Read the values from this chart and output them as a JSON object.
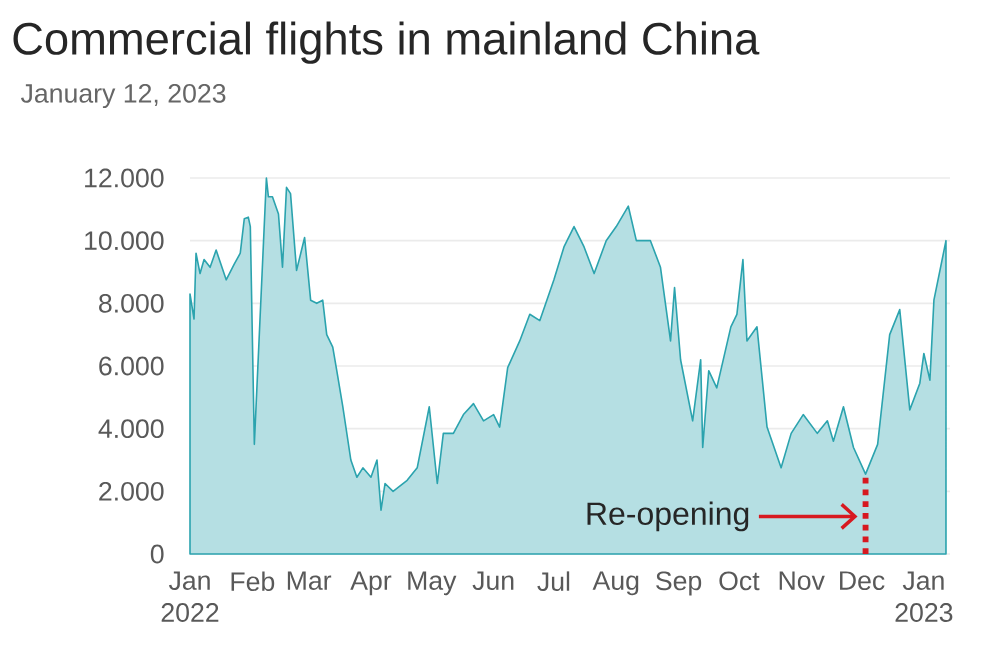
{
  "chart_data": {
    "type": "area",
    "title": "Commercial flights in mainland China",
    "subtitle": "January 12, 2023",
    "xlim": [
      "2022-01-01",
      "2023-01-14"
    ],
    "xticks": [
      {
        "value": "2022-01-01",
        "label": "Jan 2022"
      },
      {
        "value": "2022-02-01",
        "label": "Feb"
      },
      {
        "value": "2022-03-01",
        "label": "Mar"
      },
      {
        "value": "2022-04-01",
        "label": "Apr"
      },
      {
        "value": "2022-05-01",
        "label": "May"
      },
      {
        "value": "2022-06-01",
        "label": "Jun"
      },
      {
        "value": "2022-07-01",
        "label": "Jul"
      },
      {
        "value": "2022-08-01",
        "label": "Aug"
      },
      {
        "value": "2022-09-01",
        "label": "Sep"
      },
      {
        "value": "2022-10-01",
        "label": "Oct"
      },
      {
        "value": "2022-11-01",
        "label": "Nov"
      },
      {
        "value": "2022-12-01",
        "label": "Dec"
      },
      {
        "value": "2023-01-01",
        "label": "Jan 2023"
      }
    ],
    "ylim": [
      0,
      12000
    ],
    "yticks": [
      0,
      {
        "value": 2000,
        "label": "2.000"
      },
      {
        "value": 4000,
        "label": "4.000"
      },
      {
        "value": 6000,
        "label": "6.000"
      },
      {
        "value": 8000,
        "label": "8.000"
      },
      {
        "value": 10000,
        "label": "10.000"
      },
      {
        "value": 12000,
        "label": "12.000"
      }
    ],
    "grid": "y",
    "marker": "none",
    "series": [
      {
        "color": "#2ba3ae",
        "x": [
          "2022-01-01",
          "2022-01-03",
          "2022-01-04",
          "2022-01-06",
          "2022-01-08",
          "2022-01-11",
          "2022-01-14",
          "2022-01-19",
          "2022-01-23",
          "2022-01-26",
          "2022-01-28",
          "2022-01-30",
          "2022-01-31",
          "2022-02-02",
          "2022-02-08",
          "2022-02-09",
          "2022-02-11",
          "2022-02-14",
          "2022-02-16",
          "2022-02-18",
          "2022-02-20",
          "2022-02-23",
          "2022-02-27",
          "2022-03-02",
          "2022-03-05",
          "2022-03-08",
          "2022-03-10",
          "2022-03-13",
          "2022-03-15",
          "2022-03-18",
          "2022-03-22",
          "2022-03-25",
          "2022-03-28",
          "2022-04-01",
          "2022-04-04",
          "2022-04-06",
          "2022-04-08",
          "2022-04-12",
          "2022-04-19",
          "2022-04-24",
          "2022-04-30",
          "2022-05-04",
          "2022-05-07",
          "2022-05-12",
          "2022-05-17",
          "2022-05-22",
          "2022-05-27",
          "2022-06-01",
          "2022-06-04",
          "2022-06-08",
          "2022-06-14",
          "2022-06-19",
          "2022-06-24",
          "2022-07-01",
          "2022-07-06",
          "2022-07-11",
          "2022-07-16",
          "2022-07-21",
          "2022-07-27",
          "2022-08-01",
          "2022-08-07",
          "2022-08-11",
          "2022-08-18",
          "2022-08-23",
          "2022-08-28",
          "2022-08-30",
          "2022-09-02",
          "2022-09-08",
          "2022-09-12",
          "2022-09-13",
          "2022-09-16",
          "2022-09-20",
          "2022-09-27",
          "2022-09-30",
          "2022-10-03",
          "2022-10-05",
          "2022-10-10",
          "2022-10-15",
          "2022-10-22",
          "2022-10-27",
          "2022-11-02",
          "2022-11-09",
          "2022-11-14",
          "2022-11-17",
          "2022-11-22",
          "2022-11-27",
          "2022-12-03",
          "2022-12-09",
          "2022-12-15",
          "2022-12-20",
          "2022-12-25",
          "2022-12-30",
          "2023-01-01",
          "2023-01-04",
          "2023-01-06",
          "2023-01-12"
        ],
        "values": [
          8300,
          7500,
          9600,
          8950,
          9400,
          9150,
          9700,
          8750,
          9250,
          9600,
          10700,
          10750,
          10450,
          3500,
          12000,
          11400,
          11400,
          10850,
          9150,
          11700,
          11500,
          9050,
          10100,
          8100,
          8000,
          8100,
          7000,
          6600,
          5850,
          4700,
          3000,
          2450,
          2750,
          2450,
          3000,
          1400,
          2250,
          2000,
          2350,
          2750,
          4700,
          2250,
          3850,
          3850,
          4450,
          4800,
          4250,
          4450,
          4050,
          5950,
          6800,
          7650,
          7450,
          8750,
          9800,
          10450,
          9800,
          8950,
          10000,
          10450,
          11100,
          10000,
          10000,
          9150,
          6800,
          8500,
          6200,
          4250,
          6200,
          3400,
          5850,
          5300,
          7250,
          7650,
          9400,
          6800,
          7250,
          4050,
          2750,
          3850,
          4450,
          3850,
          4250,
          3600,
          4700,
          3400,
          2550,
          3500,
          7000,
          7800,
          4600,
          5450,
          6400,
          5550,
          8100,
          10000
        ]
      }
    ],
    "ref_lines": [
      {
        "axis": "x",
        "value": "2022-12-03",
        "label": "Re-opening",
        "color": "#d71920",
        "line_style": "dotted"
      }
    ]
  }
}
